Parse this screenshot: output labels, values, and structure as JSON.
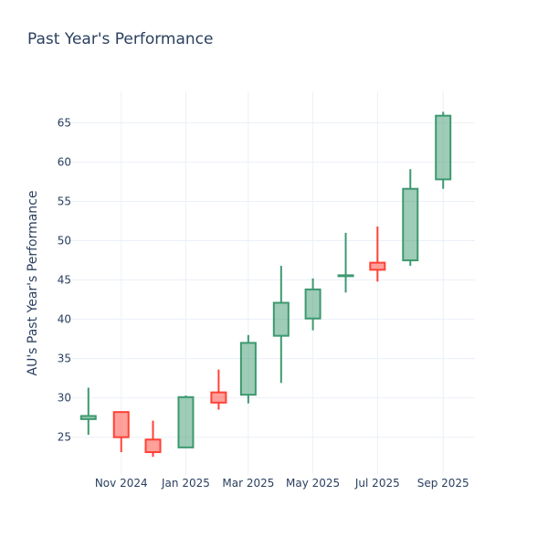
{
  "chart_data": {
    "type": "candlestick",
    "title": "Past Year's Performance",
    "xlabel": "",
    "ylabel": "AU's Past Year's Performance",
    "ylim": [
      20.2,
      69
    ],
    "xlim": [
      "2024-09-01",
      "2025-10-01"
    ],
    "grid": true,
    "legend": "none",
    "colors": {
      "increasing": "#3d9970",
      "decreasing": "#ff4136",
      "grid": "#ebf0f8",
      "text": "#2a3f5f"
    },
    "yticks": [
      25,
      30,
      35,
      40,
      45,
      50,
      55,
      60,
      65
    ],
    "xticks": [
      {
        "date": "2024-11-01",
        "label": "Nov 2024"
      },
      {
        "date": "2025-01-01",
        "label": "Jan 2025"
      },
      {
        "date": "2025-03-01",
        "label": "Mar 2025"
      },
      {
        "date": "2025-05-01",
        "label": "May 2025"
      },
      {
        "date": "2025-07-01",
        "label": "Jul 2025"
      },
      {
        "date": "2025-09-01",
        "label": "Sep 2025"
      }
    ],
    "candles": [
      {
        "date": "2024-10-01",
        "open": 27.3,
        "high": 31.3,
        "low": 25.3,
        "close": 27.7
      },
      {
        "date": "2024-11-01",
        "open": 28.2,
        "high": 28.2,
        "low": 23.1,
        "close": 25.0
      },
      {
        "date": "2024-12-01",
        "open": 24.7,
        "high": 27.1,
        "low": 22.5,
        "close": 23.1
      },
      {
        "date": "2025-01-01",
        "open": 23.7,
        "high": 30.3,
        "low": 23.7,
        "close": 30.1
      },
      {
        "date": "2025-02-01",
        "open": 30.7,
        "high": 33.6,
        "low": 28.5,
        "close": 29.4
      },
      {
        "date": "2025-03-01",
        "open": 30.4,
        "high": 38.0,
        "low": 29.3,
        "close": 37.0
      },
      {
        "date": "2025-04-01",
        "open": 37.9,
        "high": 46.8,
        "low": 31.9,
        "close": 42.1
      },
      {
        "date": "2025-05-01",
        "open": 40.1,
        "high": 45.2,
        "low": 38.6,
        "close": 43.8
      },
      {
        "date": "2025-06-01",
        "open": 45.5,
        "high": 51.0,
        "low": 43.4,
        "close": 45.6
      },
      {
        "date": "2025-07-01",
        "open": 47.2,
        "high": 51.8,
        "low": 44.8,
        "close": 46.3
      },
      {
        "date": "2025-08-01",
        "open": 47.5,
        "high": 59.1,
        "low": 46.8,
        "close": 56.6
      },
      {
        "date": "2025-09-01",
        "open": 57.8,
        "high": 66.4,
        "low": 56.6,
        "close": 65.9
      }
    ]
  }
}
